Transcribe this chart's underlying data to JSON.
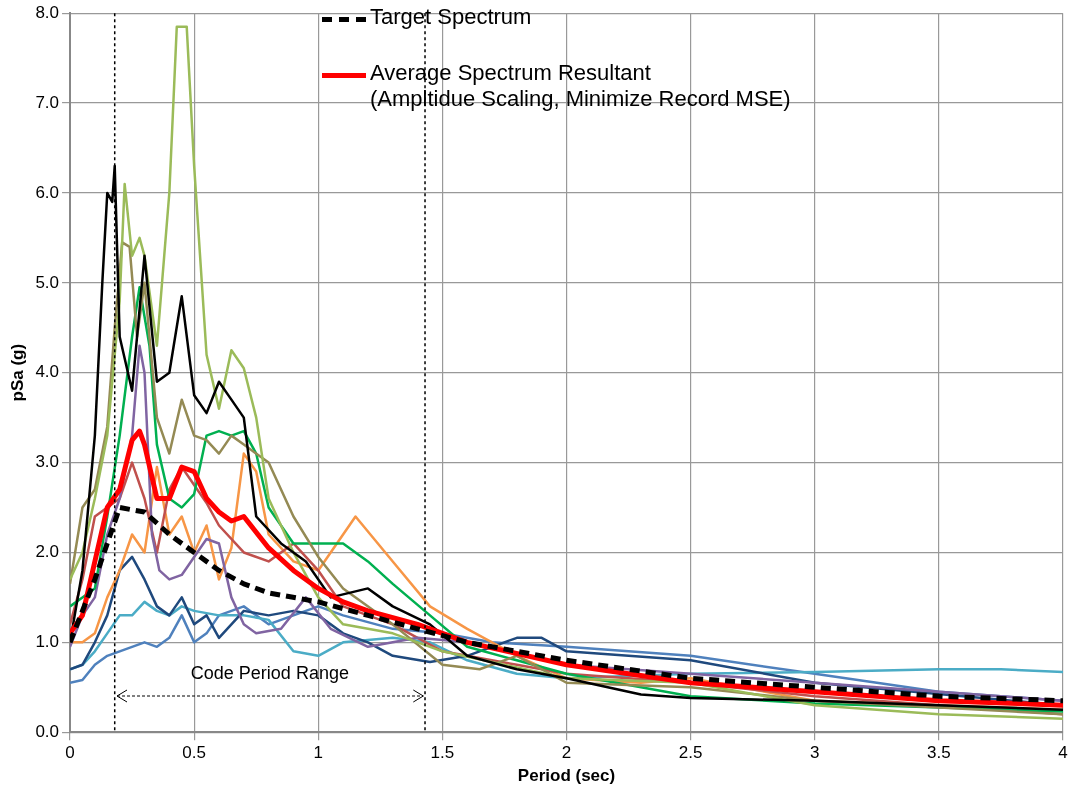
{
  "chart_data": {
    "type": "line",
    "xlabel": "Period (sec)",
    "ylabel": "pSa (g)",
    "xlim": [
      0,
      4
    ],
    "ylim": [
      0,
      8
    ],
    "xticks": [
      0,
      0.5,
      1,
      1.5,
      2,
      2.5,
      3,
      3.5,
      4
    ],
    "yticks": [
      {
        "value": 0,
        "label": "0.0"
      },
      {
        "value": 1,
        "label": "1.0"
      },
      {
        "value": 2,
        "label": "2.0"
      },
      {
        "value": 3,
        "label": "3.0"
      },
      {
        "value": 4,
        "label": "4.0"
      },
      {
        "value": 5,
        "label": "5.0"
      },
      {
        "value": 6,
        "label": "6.0"
      },
      {
        "value": 7,
        "label": "7.0"
      },
      {
        "value": 8,
        "label": "8.0"
      }
    ],
    "grid": true,
    "legend": "top",
    "marker": "none",
    "series": [
      {
        "color": "#000000",
        "x": [
          0,
          0.05,
          0.1,
          0.13,
          0.15,
          0.17,
          0.18,
          0.2,
          0.25,
          0.3,
          0.35,
          0.4,
          0.45,
          0.5,
          0.55,
          0.6,
          0.65,
          0.7,
          0.75,
          0.85,
          0.95,
          1.05,
          1.2,
          1.3,
          1.45,
          1.6,
          1.8,
          2,
          2.3,
          2.5,
          3,
          3.5,
          4
        ],
        "values": [
          1.0,
          1.8,
          3.3,
          5.0,
          6.0,
          5.9,
          6.3,
          4.4,
          3.8,
          5.3,
          3.9,
          4.0,
          4.85,
          3.75,
          3.55,
          3.9,
          3.7,
          3.5,
          2.4,
          2.1,
          1.9,
          1.5,
          1.6,
          1.4,
          1.2,
          0.85,
          0.7,
          0.6,
          0.42,
          0.38,
          0.35,
          0.3,
          0.25
        ]
      },
      {
        "color": "#9bbb59",
        "x": [
          0,
          0.05,
          0.1,
          0.15,
          0.2,
          0.22,
          0.25,
          0.28,
          0.3,
          0.35,
          0.4,
          0.43,
          0.47,
          0.5,
          0.55,
          0.6,
          0.65,
          0.7,
          0.75,
          0.8,
          0.9,
          1.0,
          1.1,
          1.3,
          1.5,
          2,
          2.5,
          3,
          3.5,
          4
        ],
        "values": [
          1.7,
          2.0,
          2.6,
          3.3,
          4.8,
          6.1,
          5.3,
          5.5,
          5.3,
          4.3,
          6.0,
          7.85,
          7.85,
          6.3,
          4.2,
          3.6,
          4.25,
          4.05,
          3.5,
          2.6,
          2.0,
          1.5,
          1.2,
          1.1,
          0.9,
          0.6,
          0.55,
          0.3,
          0.2,
          0.15
        ]
      },
      {
        "color": "#948a54",
        "x": [
          0,
          0.05,
          0.1,
          0.15,
          0.18,
          0.21,
          0.24,
          0.27,
          0.3,
          0.35,
          0.4,
          0.45,
          0.5,
          0.55,
          0.6,
          0.65,
          0.7,
          0.8,
          0.9,
          1.0,
          1.1,
          1.3,
          1.5,
          1.65,
          1.8,
          2,
          2.5,
          3,
          4
        ],
        "values": [
          1.65,
          2.5,
          2.7,
          3.4,
          4.5,
          5.45,
          5.4,
          4.4,
          5.0,
          3.5,
          3.1,
          3.7,
          3.3,
          3.25,
          3.1,
          3.3,
          3.2,
          3.0,
          2.4,
          1.95,
          1.6,
          1.2,
          0.75,
          0.7,
          0.85,
          0.55,
          0.5,
          0.35,
          0.2
        ]
      },
      {
        "color": "#00b050",
        "x": [
          0,
          0.05,
          0.1,
          0.15,
          0.2,
          0.25,
          0.28,
          0.32,
          0.35,
          0.4,
          0.45,
          0.5,
          0.55,
          0.6,
          0.65,
          0.7,
          0.75,
          0.8,
          0.9,
          1.0,
          1.1,
          1.2,
          1.3,
          1.45,
          1.6,
          2,
          2.5,
          3,
          4
        ],
        "values": [
          1.4,
          1.5,
          1.6,
          2.4,
          3.3,
          4.4,
          4.95,
          4.3,
          3.2,
          2.6,
          2.5,
          2.65,
          3.3,
          3.35,
          3.3,
          3.35,
          3.1,
          2.5,
          2.1,
          2.1,
          2.1,
          1.9,
          1.65,
          1.3,
          0.95,
          0.65,
          0.4,
          0.32,
          0.23
        ]
      },
      {
        "color": "#8064a2",
        "x": [
          0,
          0.05,
          0.1,
          0.15,
          0.2,
          0.25,
          0.28,
          0.3,
          0.33,
          0.36,
          0.4,
          0.45,
          0.5,
          0.55,
          0.6,
          0.65,
          0.7,
          0.75,
          0.85,
          0.95,
          1.05,
          1.2,
          1.4,
          1.6,
          2,
          2.5,
          3,
          3.5,
          4
        ],
        "values": [
          0.95,
          1.3,
          1.5,
          2.2,
          2.6,
          3.3,
          4.3,
          4.0,
          2.2,
          1.8,
          1.7,
          1.75,
          1.95,
          2.15,
          2.1,
          1.5,
          1.2,
          1.1,
          1.15,
          1.5,
          1.15,
          0.95,
          1.05,
          1.0,
          0.75,
          0.65,
          0.55,
          0.45,
          0.35
        ]
      },
      {
        "color": "#c0504d",
        "x": [
          0,
          0.05,
          0.1,
          0.15,
          0.2,
          0.25,
          0.3,
          0.35,
          0.4,
          0.45,
          0.5,
          0.55,
          0.6,
          0.7,
          0.8,
          0.9,
          1.0,
          1.1,
          1.3,
          1.5,
          1.8,
          2,
          2.5,
          3,
          4
        ],
        "values": [
          1.2,
          1.7,
          2.4,
          2.5,
          2.6,
          3.0,
          2.6,
          2.0,
          2.7,
          2.95,
          2.75,
          2.55,
          2.3,
          2.0,
          1.9,
          2.1,
          1.8,
          1.4,
          1.2,
          0.9,
          0.75,
          0.65,
          0.55,
          0.4,
          0.2
        ]
      },
      {
        "color": "#f79646",
        "x": [
          0,
          0.05,
          0.1,
          0.15,
          0.2,
          0.25,
          0.3,
          0.35,
          0.4,
          0.45,
          0.5,
          0.55,
          0.6,
          0.65,
          0.7,
          0.75,
          0.8,
          0.9,
          1.0,
          1.15,
          1.3,
          1.45,
          1.6,
          1.8,
          2,
          2.3,
          2.5,
          3,
          4
        ],
        "values": [
          1.0,
          1.0,
          1.1,
          1.5,
          1.8,
          2.2,
          2.0,
          2.95,
          2.2,
          2.4,
          2.0,
          2.3,
          1.7,
          2.05,
          3.1,
          2.9,
          2.2,
          1.9,
          1.8,
          2.4,
          1.9,
          1.4,
          1.15,
          0.85,
          0.6,
          0.55,
          0.6,
          0.35,
          0.25
        ]
      },
      {
        "color": "#1f497d",
        "x": [
          0,
          0.05,
          0.1,
          0.15,
          0.2,
          0.25,
          0.3,
          0.35,
          0.4,
          0.45,
          0.5,
          0.55,
          0.6,
          0.65,
          0.7,
          0.8,
          0.9,
          1.0,
          1.1,
          1.2,
          1.3,
          1.45,
          1.6,
          1.8,
          1.9,
          2,
          2.5,
          3,
          4
        ],
        "values": [
          0.7,
          0.75,
          1.0,
          1.3,
          1.8,
          1.95,
          1.7,
          1.4,
          1.3,
          1.5,
          1.2,
          1.3,
          1.05,
          1.2,
          1.35,
          1.3,
          1.35,
          1.3,
          1.1,
          1.0,
          0.85,
          0.78,
          0.85,
          1.05,
          1.05,
          0.9,
          0.8,
          0.55,
          0.3
        ]
      },
      {
        "color": "#4bacc6",
        "x": [
          0,
          0.05,
          0.1,
          0.15,
          0.2,
          0.25,
          0.3,
          0.35,
          0.4,
          0.45,
          0.5,
          0.6,
          0.7,
          0.8,
          0.9,
          1.0,
          1.1,
          1.3,
          1.45,
          1.6,
          1.8,
          2,
          2.5,
          3,
          3.5,
          3.75,
          4
        ],
        "values": [
          0.7,
          0.75,
          0.9,
          1.1,
          1.3,
          1.3,
          1.45,
          1.35,
          1.3,
          1.4,
          1.35,
          1.3,
          1.3,
          1.25,
          0.9,
          0.85,
          1.0,
          1.05,
          1.0,
          0.8,
          0.65,
          0.6,
          0.65,
          0.67,
          0.7,
          0.7,
          0.67
        ]
      },
      {
        "color": "#4f81bd",
        "x": [
          0,
          0.05,
          0.1,
          0.15,
          0.2,
          0.25,
          0.3,
          0.35,
          0.4,
          0.45,
          0.5,
          0.55,
          0.6,
          0.7,
          0.8,
          0.9,
          1.0,
          1.1,
          1.3,
          1.5,
          1.7,
          2,
          2.5,
          3,
          3.5,
          4
        ],
        "values": [
          0.55,
          0.58,
          0.75,
          0.85,
          0.9,
          0.95,
          1.0,
          0.95,
          1.05,
          1.3,
          1.0,
          1.1,
          1.3,
          1.4,
          1.2,
          1.3,
          1.4,
          1.3,
          1.15,
          1.1,
          1.0,
          0.95,
          0.85,
          0.65,
          0.45,
          0.35
        ]
      },
      {
        "name": "Target Spectrum",
        "color": "#000000",
        "line_style": "dashed",
        "x": [
          0,
          0.1,
          0.15,
          0.2,
          0.3,
          0.4,
          0.5,
          0.6,
          0.7,
          0.8,
          1.0,
          1.2,
          1.4,
          1.6,
          2,
          2.5,
          3,
          3.5,
          4
        ],
        "values": [
          1.0,
          1.7,
          2.1,
          2.5,
          2.45,
          2.2,
          2.0,
          1.8,
          1.65,
          1.55,
          1.45,
          1.3,
          1.15,
          1.0,
          0.8,
          0.6,
          0.5,
          0.4,
          0.35
        ]
      },
      {
        "name": "Average Spectrum Resultant (Ampltidue Scaling, Minimize Record MSE)",
        "color": "#ff0000",
        "x": [
          0,
          0.05,
          0.1,
          0.15,
          0.2,
          0.25,
          0.28,
          0.3,
          0.35,
          0.4,
          0.45,
          0.5,
          0.55,
          0.6,
          0.65,
          0.7,
          0.8,
          0.9,
          1.0,
          1.1,
          1.2,
          1.4,
          1.6,
          2,
          2.5,
          3,
          3.5,
          4
        ],
        "values": [
          1.1,
          1.3,
          1.9,
          2.5,
          2.7,
          3.25,
          3.35,
          3.2,
          2.6,
          2.6,
          2.95,
          2.9,
          2.6,
          2.45,
          2.35,
          2.4,
          2.05,
          1.8,
          1.6,
          1.45,
          1.35,
          1.2,
          1.0,
          0.75,
          0.55,
          0.45,
          0.35,
          0.3
        ]
      }
    ],
    "ref_lines": [
      {
        "axis": "x",
        "value": 0.18,
        "color": "#000000",
        "line_style": "dotted"
      },
      {
        "axis": "x",
        "value": 1.43,
        "color": "#000000",
        "line_style": "dotted"
      }
    ],
    "annotations": [
      "Code Period Range"
    ]
  }
}
